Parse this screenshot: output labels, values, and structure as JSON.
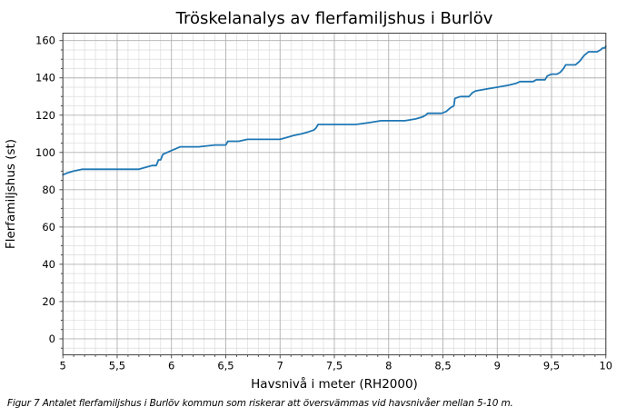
{
  "figure": {
    "caption": "Figur 7 Antalet flerfamiljshus i Burlöv kommun som riskerar att översvämmas vid havsnivåer mellan 5-10 m."
  },
  "chart_data": {
    "type": "line",
    "title": "Tröskelanalys av flerfamiljshus i Burlöv",
    "xlabel": "Havsnivå i meter (RH2000)",
    "ylabel": "Flerfamiljshus (st)",
    "xlim": [
      5,
      10
    ],
    "ylim": [
      -8.6,
      164
    ],
    "x_ticks": [
      5,
      5.5,
      6,
      6.5,
      7,
      7.5,
      8,
      8.5,
      9,
      9.5,
      10
    ],
    "x_tick_labels": [
      "5",
      "5,5",
      "6",
      "6,5",
      "7",
      "7,5",
      "8",
      "8,5",
      "9",
      "9,5",
      "10"
    ],
    "x_minor_step": 0.1,
    "y_ticks": [
      0,
      20,
      40,
      60,
      80,
      100,
      120,
      140,
      160
    ],
    "y_tick_labels": [
      "0",
      "20",
      "40",
      "60",
      "80",
      "100",
      "120",
      "140",
      "160"
    ],
    "y_minor_step": 5,
    "grid": "major+minor",
    "legend": "none",
    "line_color": "#1f77b4",
    "grid_major_color": "#b0b0b0",
    "grid_minor_color": "#dcdcdc",
    "series": [
      {
        "name": "Flerfamiljshus (st)",
        "points": [
          [
            5.0,
            88
          ],
          [
            5.04,
            89
          ],
          [
            5.1,
            90
          ],
          [
            5.18,
            91
          ],
          [
            5.45,
            91
          ],
          [
            5.7,
            91
          ],
          [
            5.76,
            92
          ],
          [
            5.82,
            93
          ],
          [
            5.86,
            93
          ],
          [
            5.88,
            96
          ],
          [
            5.9,
            96
          ],
          [
            5.92,
            99
          ],
          [
            5.96,
            100
          ],
          [
            6.0,
            101
          ],
          [
            6.04,
            102
          ],
          [
            6.08,
            103
          ],
          [
            6.25,
            103
          ],
          [
            6.4,
            104
          ],
          [
            6.5,
            104
          ],
          [
            6.52,
            106
          ],
          [
            6.62,
            106
          ],
          [
            6.7,
            107
          ],
          [
            7.0,
            107
          ],
          [
            7.06,
            108
          ],
          [
            7.12,
            109
          ],
          [
            7.2,
            110
          ],
          [
            7.26,
            111
          ],
          [
            7.31,
            112
          ],
          [
            7.33,
            113
          ],
          [
            7.35,
            115
          ],
          [
            7.55,
            115
          ],
          [
            7.7,
            115
          ],
          [
            7.82,
            116
          ],
          [
            7.93,
            117
          ],
          [
            8.15,
            117
          ],
          [
            8.25,
            118
          ],
          [
            8.31,
            119
          ],
          [
            8.34,
            120
          ],
          [
            8.36,
            121
          ],
          [
            8.49,
            121
          ],
          [
            8.53,
            122
          ],
          [
            8.57,
            124
          ],
          [
            8.6,
            125
          ],
          [
            8.61,
            129
          ],
          [
            8.66,
            130
          ],
          [
            8.74,
            130
          ],
          [
            8.77,
            132
          ],
          [
            8.8,
            133
          ],
          [
            8.9,
            134
          ],
          [
            9.0,
            135
          ],
          [
            9.1,
            136
          ],
          [
            9.17,
            137
          ],
          [
            9.21,
            138
          ],
          [
            9.33,
            138
          ],
          [
            9.36,
            139
          ],
          [
            9.44,
            139
          ],
          [
            9.46,
            141
          ],
          [
            9.5,
            142
          ],
          [
            9.55,
            142
          ],
          [
            9.58,
            143
          ],
          [
            9.61,
            145
          ],
          [
            9.63,
            147
          ],
          [
            9.72,
            147
          ],
          [
            9.76,
            149
          ],
          [
            9.8,
            152
          ],
          [
            9.84,
            154
          ],
          [
            9.92,
            154
          ],
          [
            9.95,
            155
          ],
          [
            9.97,
            156
          ],
          [
            9.99,
            156
          ],
          [
            10.0,
            157
          ]
        ]
      }
    ]
  }
}
